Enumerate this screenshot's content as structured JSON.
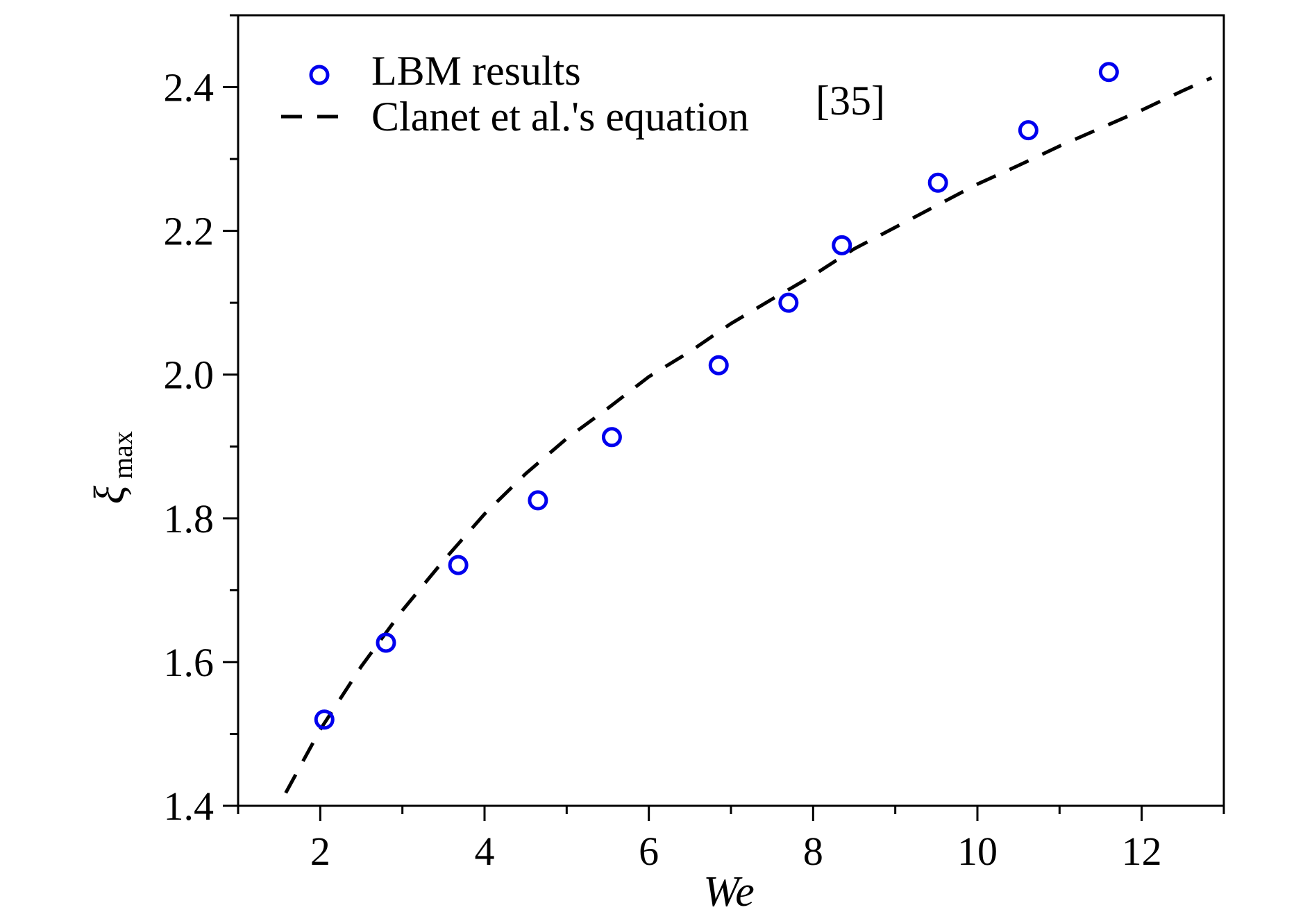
{
  "chart_data": {
    "type": "scatter",
    "xlabel": "We",
    "ylabel_main": "ξ",
    "ylabel_sub": "max",
    "xlim": [
      1,
      13
    ],
    "ylim": [
      1.4,
      2.5
    ],
    "x_ticks": [
      2,
      4,
      6,
      8,
      10,
      12
    ],
    "y_ticks": [
      1.4,
      1.6,
      1.8,
      2.0,
      2.2,
      2.4
    ],
    "x_tick_labels": [
      "2",
      "4",
      "6",
      "8",
      "10",
      "12"
    ],
    "y_tick_labels": [
      "1.4",
      "1.6",
      "1.8",
      "2.0",
      "2.2",
      "2.4"
    ],
    "grid": false,
    "legend_position": "top-left",
    "series": [
      {
        "name": "LBM results",
        "kind": "scatter",
        "marker": "open-circle",
        "color": "#0000ee",
        "x": [
          2.05,
          2.8,
          3.68,
          4.65,
          5.55,
          6.85,
          7.7,
          8.35,
          9.52,
          10.62,
          11.6
        ],
        "y": [
          1.52,
          1.627,
          1.735,
          1.825,
          1.913,
          2.013,
          2.1,
          2.18,
          2.267,
          2.34,
          2.421
        ]
      },
      {
        "name_main": "Clanet  et al.'s equation",
        "name_sup": "[35]",
        "kind": "line",
        "style": "dashed",
        "color": "#000000",
        "x": [
          1.58,
          2,
          2.5,
          3,
          3.5,
          4,
          4.5,
          5,
          5.5,
          6,
          6.5,
          7,
          7.5,
          8,
          8.5,
          9,
          9.5,
          10,
          10.5,
          11,
          11.5,
          12,
          12.5,
          12.85
        ],
        "y": [
          1.418,
          1.506,
          1.594,
          1.672,
          1.741,
          1.806,
          1.862,
          1.911,
          1.953,
          1.997,
          2.032,
          2.071,
          2.105,
          2.138,
          2.175,
          2.205,
          2.235,
          2.265,
          2.291,
          2.318,
          2.343,
          2.368,
          2.395,
          2.413
        ]
      }
    ]
  }
}
